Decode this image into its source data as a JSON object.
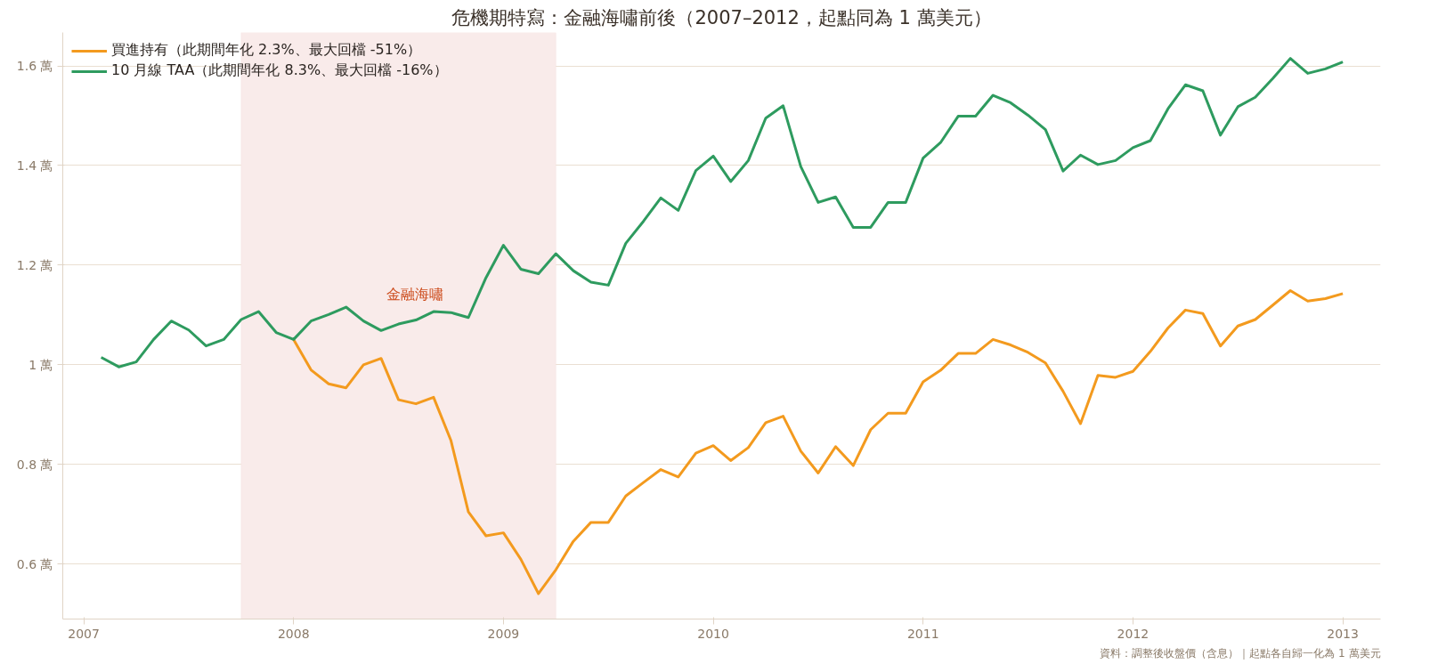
{
  "chart_data": {
    "type": "line",
    "title": "危機期特寫：金融海嘯前後（2007–2012，起點同為 1 萬美元）",
    "x": [
      2007.083,
      2007.167,
      2007.25,
      2007.333,
      2007.417,
      2007.5,
      2007.583,
      2007.667,
      2007.75,
      2007.833,
      2007.917,
      2008.0,
      2008.083,
      2008.167,
      2008.25,
      2008.333,
      2008.417,
      2008.5,
      2008.583,
      2008.667,
      2008.75,
      2008.833,
      2008.917,
      2009.0,
      2009.083,
      2009.167,
      2009.25,
      2009.333,
      2009.417,
      2009.5,
      2009.583,
      2009.667,
      2009.75,
      2009.833,
      2009.917,
      2010.0,
      2010.083,
      2010.167,
      2010.25,
      2010.333,
      2010.417,
      2010.5,
      2010.583,
      2010.667,
      2010.75,
      2010.833,
      2010.917,
      2011.0,
      2011.083,
      2011.167,
      2011.25,
      2011.333,
      2011.417,
      2011.5,
      2011.583,
      2011.667,
      2011.75,
      2011.833,
      2011.917,
      2012.0,
      2012.083,
      2012.167,
      2012.25,
      2012.333,
      2012.417,
      2012.5,
      2012.583,
      2012.667,
      2012.75,
      2012.833,
      2012.917,
      2013.0
    ],
    "series": [
      {
        "name": "買進持有（此期間年化 2.3%、最大回檔 -51%）",
        "color": "#f39a1e",
        "values": [
          null,
          null,
          null,
          null,
          null,
          null,
          null,
          null,
          null,
          null,
          null,
          1.051,
          0.99,
          0.962,
          0.954,
          1.0,
          1.013,
          0.93,
          0.922,
          0.935,
          0.848,
          0.705,
          0.657,
          0.663,
          0.61,
          0.541,
          0.589,
          0.646,
          0.684,
          0.684,
          0.737,
          0.764,
          0.79,
          0.775,
          0.823,
          0.838,
          0.808,
          0.834,
          0.884,
          0.897,
          0.827,
          0.783,
          0.836,
          0.798,
          0.87,
          0.903,
          0.903,
          0.966,
          0.989,
          1.023,
          1.023,
          1.051,
          1.04,
          1.025,
          1.004,
          0.947,
          0.882,
          0.979,
          0.975,
          0.987,
          1.027,
          1.074,
          1.11,
          1.103,
          1.038,
          1.078,
          1.091,
          1.12,
          1.149,
          1.128,
          1.133,
          1.143
        ]
      },
      {
        "name": "10 月線 TAA（此期間年化 8.3%、最大回檔 -16%）",
        "color": "#2e9b5f",
        "values": [
          1.015,
          0.996,
          1.006,
          1.051,
          1.088,
          1.07,
          1.038,
          1.051,
          1.091,
          1.107,
          1.065,
          1.051,
          1.088,
          1.101,
          1.116,
          1.088,
          1.069,
          1.082,
          1.09,
          1.107,
          1.105,
          1.095,
          1.175,
          1.24,
          1.192,
          1.183,
          1.223,
          1.189,
          1.166,
          1.16,
          1.244,
          1.288,
          1.335,
          1.31,
          1.39,
          1.419,
          1.368,
          1.41,
          1.495,
          1.52,
          1.398,
          1.326,
          1.337,
          1.276,
          1.276,
          1.326,
          1.326,
          1.415,
          1.446,
          1.499,
          1.499,
          1.541,
          1.526,
          1.501,
          1.472,
          1.389,
          1.421,
          1.402,
          1.41,
          1.436,
          1.45,
          1.514,
          1.562,
          1.55,
          1.461,
          1.518,
          1.537,
          1.575,
          1.615,
          1.585,
          1.594,
          1.608
        ]
      }
    ],
    "xlim": [
      2006.9,
      2013.18
    ],
    "xticks": [
      2007,
      2008,
      2009,
      2010,
      2011,
      2012,
      2013
    ],
    "ylim": [
      0.49,
      1.667
    ],
    "yticks": [
      {
        "value": 0.6,
        "label": "0.6 萬"
      },
      {
        "value": 0.8,
        "label": "0.8 萬"
      },
      {
        "value": 1,
        "label": "1 萬"
      },
      {
        "value": 1.2,
        "label": "1.2 萬"
      },
      {
        "value": 1.4,
        "label": "1.4 萬"
      },
      {
        "value": 1.6,
        "label": "1.6 萬"
      }
    ],
    "bands": [
      {
        "axis": "x",
        "from": 2007.75,
        "to": 2009.25,
        "label": "金融海嘯",
        "color": "#f9ebea"
      }
    ],
    "annotations": [
      "資料：調整後收盤價（含息）｜起點各自歸一化為 1 萬美元"
    ],
    "grid": "y",
    "legend": "top left",
    "line_style": "solid"
  }
}
